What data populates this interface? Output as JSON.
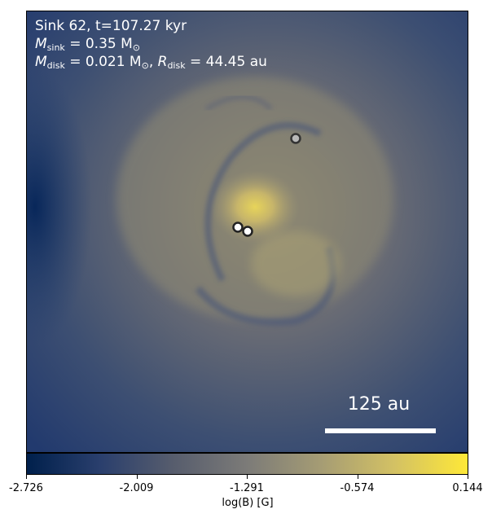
{
  "header": {
    "line1": "Sink 62, t=107.27 kyr",
    "m_sink_symbol": "M",
    "m_sink_sub": "sink",
    "m_sink_value": " = 0.35 M",
    "m_sink_unit_sub": "⊙",
    "m_disk_symbol": "M",
    "m_disk_sub": "disk",
    "m_disk_value": " = 0.021 M",
    "m_disk_unit_sub": "⊙",
    "r_disk_sep": ", ",
    "r_disk_symbol": "R",
    "r_disk_sub": "disk",
    "r_disk_value": " = 44.45 au"
  },
  "scale_bar": {
    "label": "125 au"
  },
  "colorbar": {
    "label": "log(B) [G]",
    "ticks": [
      "-2.726",
      "-2.009",
      "-1.291",
      "-0.574",
      "0.144"
    ],
    "range": [
      -2.726,
      0.144
    ],
    "colormap": "cividis",
    "colors": [
      "#00204c",
      "#2a3f6d",
      "#575d6d",
      "#7c7b78",
      "#a59c74",
      "#d3c164",
      "#fee838"
    ]
  },
  "sinks": [
    {
      "name": "sink-a",
      "marker": "white-filled-circle"
    },
    {
      "name": "sink-b",
      "marker": "white-filled-circle"
    },
    {
      "name": "sink-c",
      "marker": "grey-filled-circle"
    }
  ]
}
